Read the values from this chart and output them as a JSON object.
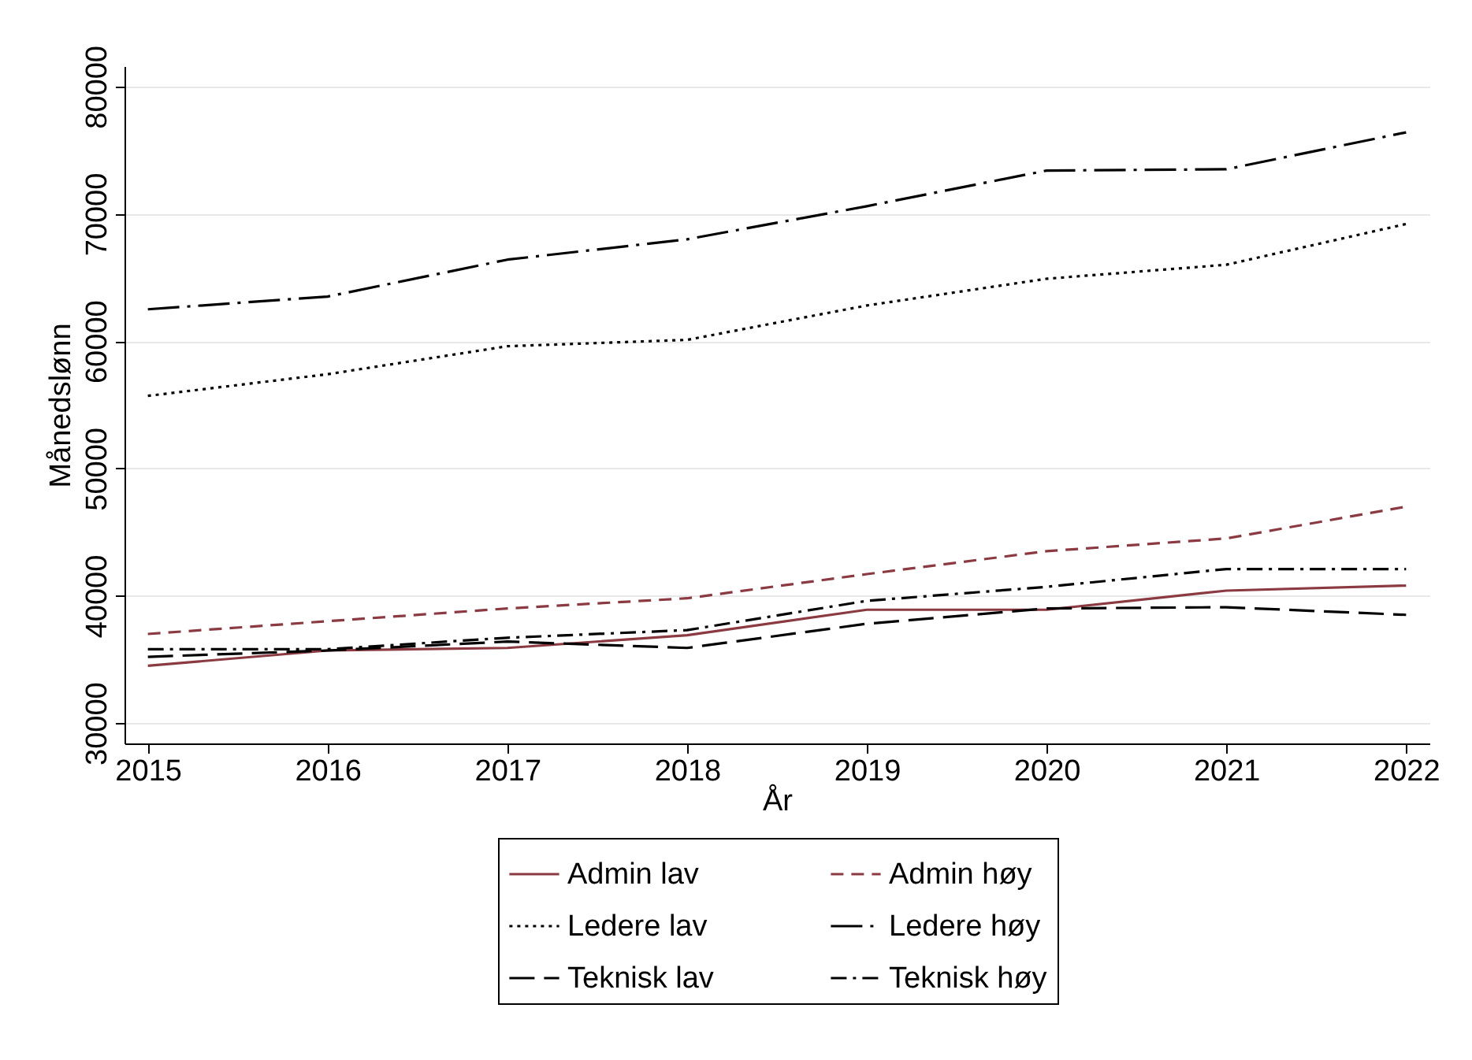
{
  "chart_data": {
    "type": "line",
    "xlabel": "År",
    "ylabel": "Månedslønn",
    "x": [
      2015,
      2016,
      2017,
      2018,
      2019,
      2020,
      2021,
      2022
    ],
    "xlim": [
      2014.87,
      2022.13
    ],
    "xticks": [
      2015,
      2016,
      2017,
      2018,
      2019,
      2020,
      2021,
      2022
    ],
    "ylim": [
      28400,
      81600
    ],
    "yticks": [
      30000,
      40000,
      50000,
      60000,
      70000,
      80000
    ],
    "grid": "y",
    "legend": "bottom",
    "marker": "none",
    "series": [
      {
        "name": "Admin lav",
        "color": "#8b3a42",
        "line_style": "solid",
        "values": [
          34500,
          35700,
          35900,
          36900,
          38900,
          38900,
          40400,
          40800
        ]
      },
      {
        "name": "Admin høy",
        "color": "#8b3a42",
        "line_style": "dashed",
        "values": [
          37000,
          38000,
          39000,
          39800,
          41700,
          43500,
          44500,
          47000
        ]
      },
      {
        "name": "Ledere lav",
        "color": "#000000",
        "line_style": "dotted",
        "values": [
          55700,
          57400,
          59600,
          60100,
          62800,
          64900,
          66000,
          69200
        ]
      },
      {
        "name": "Ledere høy",
        "color": "#000000",
        "line_style": "longdashdot",
        "values": [
          62500,
          63500,
          66400,
          68000,
          70600,
          73400,
          73500,
          76400
        ]
      },
      {
        "name": "Teknisk lav",
        "color": "#000000",
        "line_style": "longdash",
        "values": [
          35200,
          35700,
          36400,
          35900,
          37800,
          39000,
          39100,
          38500
        ]
      },
      {
        "name": "Teknisk høy",
        "color": "#000000",
        "line_style": "dashdot",
        "values": [
          35800,
          35800,
          36700,
          37300,
          39600,
          40700,
          42100,
          42100
        ]
      }
    ]
  }
}
